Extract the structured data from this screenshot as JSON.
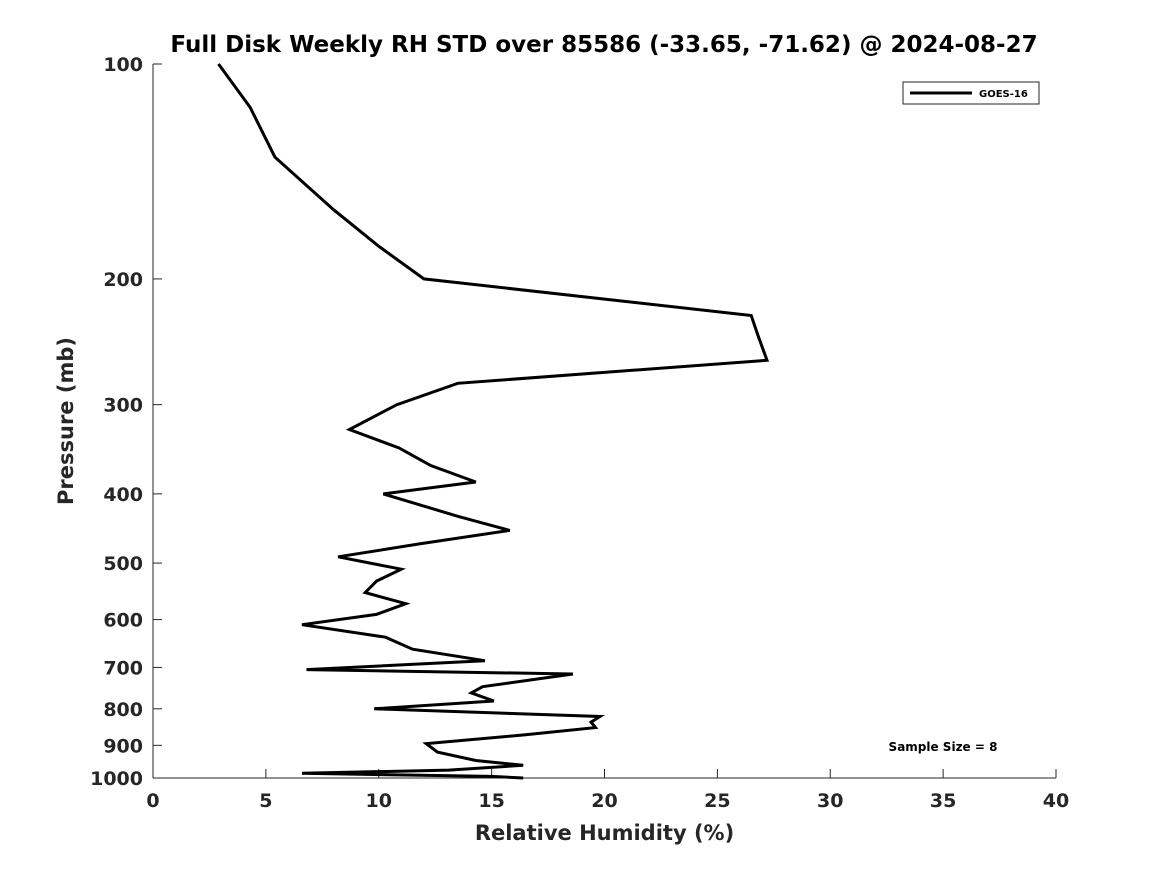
{
  "chart_data": {
    "type": "line",
    "title": "Full Disk Weekly RH STD over 85586 (-33.65, -71.62) @ 2024-08-27",
    "xlabel": "Relative Humidity (%)",
    "ylabel": "Pressure (mb)",
    "xlim": [
      0,
      40
    ],
    "ylim": [
      100,
      1000
    ],
    "y_scale": "log",
    "y_reversed": true,
    "x_ticks": [
      "0",
      "5",
      "10",
      "15",
      "20",
      "25",
      "30",
      "35",
      "40"
    ],
    "y_ticks": [
      "100",
      "200",
      "300",
      "400",
      "500",
      "600",
      "700",
      "800",
      "900",
      "1000"
    ],
    "grid": false,
    "legend_position": "top-right",
    "annotation": "Sample Size = 8",
    "series": [
      {
        "name": "GOES-16",
        "color": "#000000",
        "points": [
          [
            2.9,
            100
          ],
          [
            4.3,
            115
          ],
          [
            5.4,
            135
          ],
          [
            8.0,
            160
          ],
          [
            10.0,
            180
          ],
          [
            12.0,
            200
          ],
          [
            26.5,
            225
          ],
          [
            26.8,
            240
          ],
          [
            27.2,
            260
          ],
          [
            13.5,
            280
          ],
          [
            10.8,
            300
          ],
          [
            8.7,
            325
          ],
          [
            10.9,
            345
          ],
          [
            12.3,
            365
          ],
          [
            14.3,
            385
          ],
          [
            10.2,
            400
          ],
          [
            13.5,
            430
          ],
          [
            15.8,
            450
          ],
          [
            11.8,
            470
          ],
          [
            8.2,
            490
          ],
          [
            11.0,
            510
          ],
          [
            9.9,
            530
          ],
          [
            9.4,
            550
          ],
          [
            11.2,
            570
          ],
          [
            9.9,
            590
          ],
          [
            6.6,
            610
          ],
          [
            10.3,
            635
          ],
          [
            11.5,
            660
          ],
          [
            14.7,
            685
          ],
          [
            6.8,
            705
          ],
          [
            18.6,
            715
          ],
          [
            14.6,
            745
          ],
          [
            14.1,
            760
          ],
          [
            15.1,
            780
          ],
          [
            9.8,
            800
          ],
          [
            19.8,
            820
          ],
          [
            19.4,
            835
          ],
          [
            19.6,
            850
          ],
          [
            16.5,
            870
          ],
          [
            12.1,
            895
          ],
          [
            12.6,
            920
          ],
          [
            14.3,
            945
          ],
          [
            16.4,
            960
          ],
          [
            13.1,
            975
          ],
          [
            6.6,
            985
          ],
          [
            15.0,
            995
          ],
          [
            16.4,
            1000
          ]
        ]
      }
    ]
  }
}
